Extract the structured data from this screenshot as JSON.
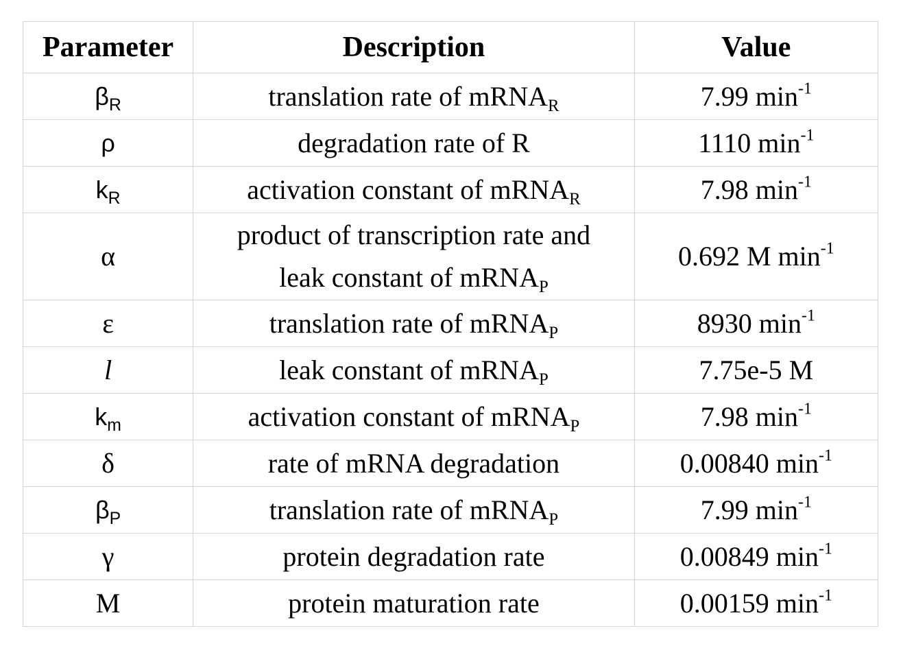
{
  "table": {
    "headers": {
      "parameter": "Parameter",
      "description": "Description",
      "value": "Value"
    },
    "rows": [
      {
        "symbol": "β",
        "symbol_sub": "R",
        "desc": "translation rate of mRNA",
        "desc_sub": "R",
        "value": "7.99 min",
        "value_sup": "-1"
      },
      {
        "symbol": "ρ",
        "symbol_sub": "",
        "desc": "degradation rate of R",
        "desc_sub": "",
        "value": "1110 min",
        "value_sup": "-1"
      },
      {
        "symbol": "k",
        "symbol_sub": "R",
        "desc": "activation constant of mRNA",
        "desc_sub": "R",
        "value": "7.98 min",
        "value_sup": "-1"
      },
      {
        "symbol": "α",
        "symbol_sub": "",
        "desc_line1": "product of transcription rate and",
        "desc_line2": "leak constant of mRNA",
        "desc_sub": "P",
        "value": "0.692 M min",
        "value_sup": "-1"
      },
      {
        "symbol": "ε",
        "symbol_sub": "",
        "desc": "translation rate of mRNA",
        "desc_sub": "P",
        "value": "8930 min",
        "value_sup": "-1"
      },
      {
        "symbol": "l",
        "symbol_sub": "",
        "desc": "leak constant of mRNA",
        "desc_sub": "P",
        "value": "7.75e-5 M",
        "value_sup": ""
      },
      {
        "symbol": "k",
        "symbol_sub": "m",
        "desc": "activation constant of mRNA",
        "desc_sub": "P",
        "value": "7.98 min",
        "value_sup": "-1"
      },
      {
        "symbol": "δ",
        "symbol_sub": "",
        "desc": "rate of mRNA degradation",
        "desc_sub": "",
        "value": "0.00840 min",
        "value_sup": "-1"
      },
      {
        "symbol": "β",
        "symbol_sub": "P",
        "desc": "translation rate of mRNA",
        "desc_sub": "P",
        "value": "7.99 min",
        "value_sup": "-1"
      },
      {
        "symbol": "γ",
        "symbol_sub": "",
        "desc": "protein degradation rate",
        "desc_sub": "",
        "value": "0.00849 min",
        "value_sup": "-1"
      },
      {
        "symbol": "M",
        "symbol_sub": "",
        "desc": "protein maturation rate",
        "desc_sub": "",
        "value": "0.00159 min",
        "value_sup": "-1"
      }
    ]
  }
}
